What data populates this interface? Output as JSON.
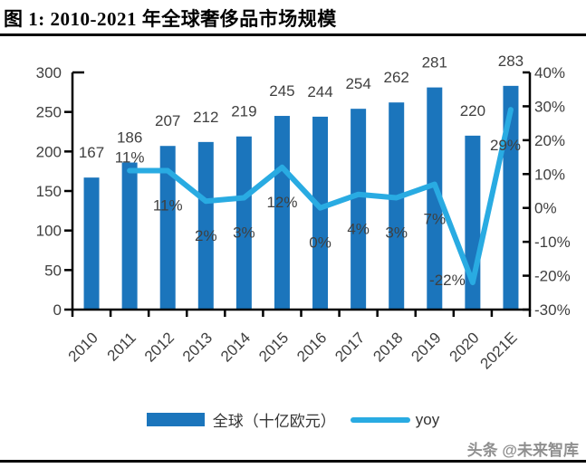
{
  "figure": {
    "title": "图 1: 2010-2021 年全球奢侈品市场规模",
    "watermark": "头条 @未来智库"
  },
  "chart_data": {
    "type": "combo_bar_line",
    "title": "2010-2021 年全球奢侈品市场规模",
    "categories": [
      "2010",
      "2011",
      "2012",
      "2013",
      "2014",
      "2015",
      "2016",
      "2017",
      "2018",
      "2019",
      "2020",
      "2021E"
    ],
    "series": [
      {
        "name": "全球（十亿欧元）",
        "type": "bar",
        "axis": "left",
        "color": "#1B75BC",
        "values": [
          167,
          186,
          207,
          212,
          219,
          245,
          244,
          254,
          262,
          281,
          220,
          283
        ]
      },
      {
        "name": "yoy",
        "type": "line",
        "axis": "right",
        "color": "#29ABE2",
        "values": [
          null,
          11,
          11,
          2,
          3,
          12,
          0,
          4,
          3,
          7,
          -22,
          29
        ],
        "labels": [
          null,
          "11%",
          "11%",
          "2%",
          "3%",
          "12%",
          "0%",
          "4%",
          "3%",
          "7%",
          "-22%",
          "29%"
        ]
      }
    ],
    "left_axis": {
      "min": 0,
      "max": 300,
      "ticks": [
        300,
        250,
        200,
        150,
        100,
        50,
        0
      ]
    },
    "right_axis": {
      "min": -30,
      "max": 40,
      "ticks": [
        "40%",
        "30%",
        "20%",
        "10%",
        "0%",
        "-10%",
        "-20%",
        "-30%"
      ]
    },
    "grid": "off",
    "legend_position": "bottom",
    "legend": [
      {
        "swatch": "bar",
        "color": "#1B75BC",
        "label": "全球（十亿欧元）"
      },
      {
        "swatch": "line",
        "color": "#29ABE2",
        "label": "yoy"
      }
    ],
    "text_color": "#3F3F3F"
  }
}
